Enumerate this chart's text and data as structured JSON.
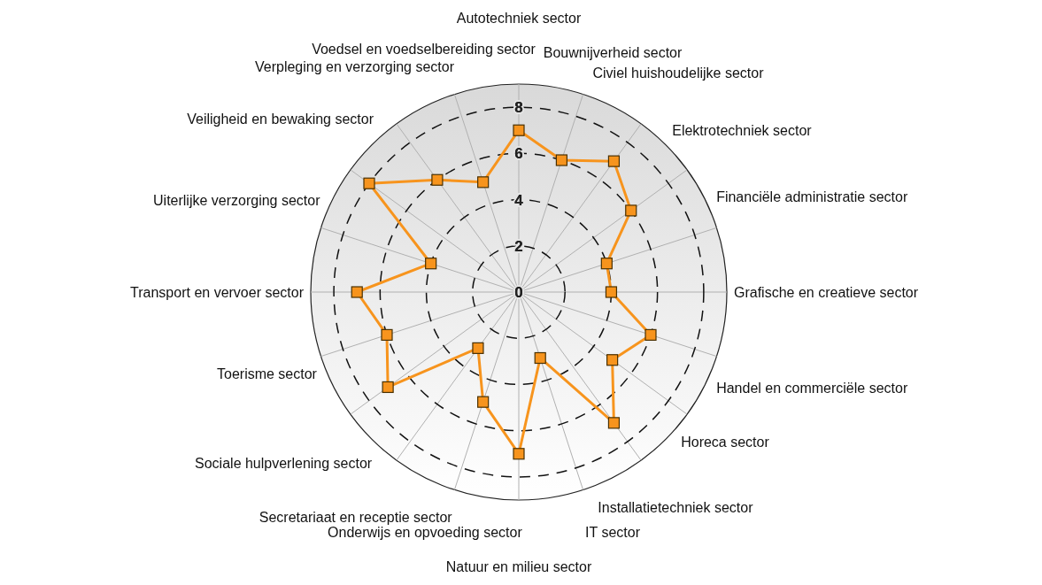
{
  "chart_data": {
    "type": "radar",
    "categories": [
      "Autotechniek sector",
      "Bouwnijverheid sector",
      "Civiel huishoudelijke sector",
      "Elektrotechniek sector",
      "Financiële administratie sector",
      "Grafische en creatieve sector",
      "Handel en commerciële sector",
      "Horeca sector",
      "Installatietechniek sector",
      "IT sector",
      "Natuur en milieu sector",
      "Onderwijs en opvoeding sector",
      "Secretariaat en receptie sector",
      "Sociale hulpverlening sector",
      "Toerisme sector",
      "Transport en vervoer sector",
      "Uiterlijke verzorging sector",
      "Veiligheid en bewaking sector",
      "Verpleging en verzorging sector",
      "Voedsel en voedselbereiding sector"
    ],
    "series": [
      {
        "color": "#f7941d",
        "values": [
          7,
          6,
          7,
          6,
          4,
          4,
          6,
          5,
          7,
          3,
          7,
          5,
          3,
          7,
          6,
          7,
          4,
          8,
          6,
          5
        ]
      }
    ],
    "ylim": [
      0,
      9
    ],
    "yticks": [
      0,
      2,
      4,
      6,
      8
    ],
    "grid": true,
    "marker": "square",
    "line_style": "solid",
    "legend": false
  }
}
